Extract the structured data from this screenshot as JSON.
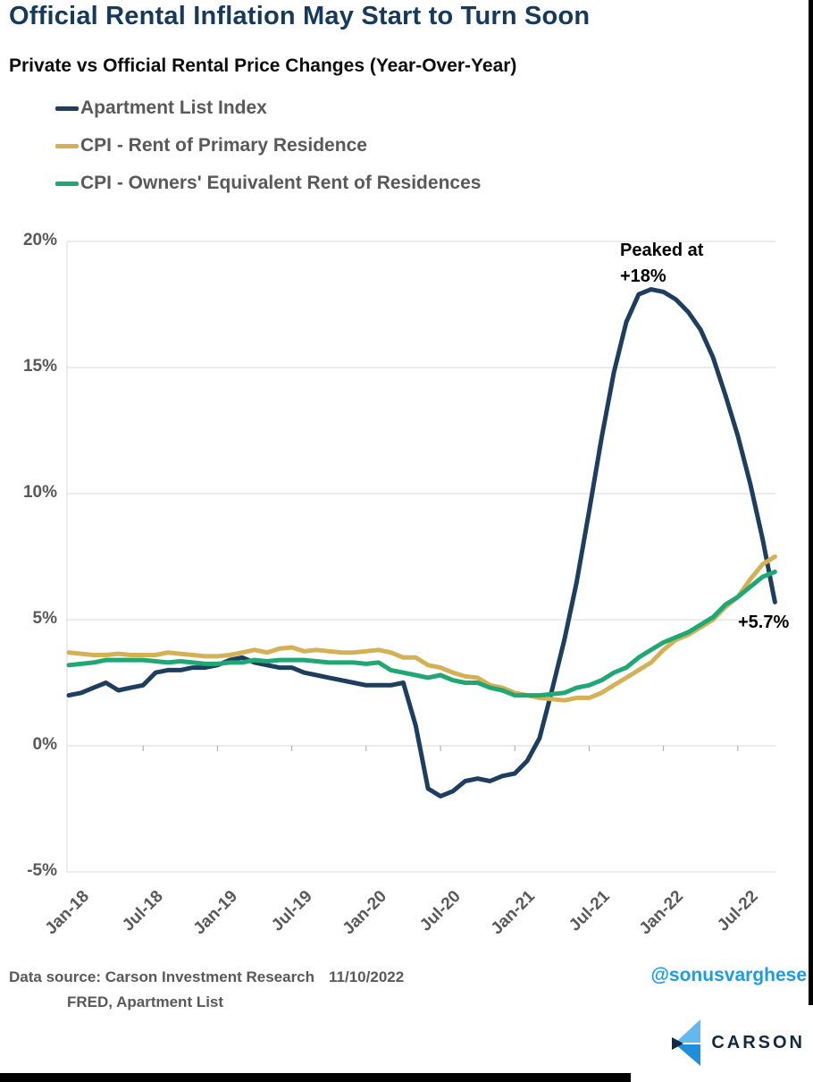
{
  "header": {
    "title": "Official Rental Inflation May Start to Turn Soon",
    "subtitle": "Private vs Official Rental Price Changes (Year-Over-Year)"
  },
  "footer": {
    "source_line1": "Data source: Carson Investment Research",
    "date": "11/10/2022",
    "source_line2": "FRED, Apartment List",
    "twitter_handle": "@sonusvarghese",
    "logo_text": "CARSON"
  },
  "colors": {
    "title_navy": "#16395c",
    "gridline": "#d9d9d9",
    "axis_text": "#595959",
    "handle_blue": "#1b9ce5",
    "logo_light_blue": "#63b8ee",
    "logo_blue": "#1f8fdc",
    "logo_navy": "#14293f"
  },
  "chart_data": {
    "type": "line",
    "title": "Private vs Official Rental Price Changes (Year-Over-Year)",
    "x_unit": "month",
    "x_start": "Jan-18",
    "x_end": "Oct-22",
    "x_tick_labels": [
      "Jan-18",
      "Jul-18",
      "Jan-19",
      "Jul-19",
      "Jan-20",
      "Jul-20",
      "Jan-21",
      "Jul-21",
      "Jan-22",
      "Jul-22"
    ],
    "x_tick_every_months": 6,
    "y_tick_labels": [
      "20%",
      "15%",
      "10%",
      "5%",
      "0%",
      "-5%"
    ],
    "y_tick_values": [
      20,
      15,
      10,
      5,
      0,
      -5
    ],
    "ylim": [
      -5,
      20
    ],
    "grid": "horizontal",
    "legend_position": "top-left",
    "series": [
      {
        "name": "Apartment List Index",
        "color": "#1d3e5e",
        "values": [
          2.0,
          2.1,
          2.3,
          2.5,
          2.2,
          2.3,
          2.4,
          2.9,
          3.0,
          3.0,
          3.1,
          3.1,
          3.2,
          3.4,
          3.5,
          3.3,
          3.2,
          3.1,
          3.1,
          2.9,
          2.8,
          2.7,
          2.6,
          2.5,
          2.4,
          2.4,
          2.4,
          2.5,
          0.8,
          -1.7,
          -2.0,
          -1.8,
          -1.4,
          -1.3,
          -1.4,
          -1.2,
          -1.1,
          -0.6,
          0.3,
          2.2,
          4.2,
          6.5,
          9.3,
          12.2,
          14.8,
          16.8,
          17.9,
          18.1,
          18.0,
          17.7,
          17.2,
          16.5,
          15.4,
          13.9,
          12.3,
          10.4,
          8.2,
          5.7
        ]
      },
      {
        "name": "CPI - Rent of Primary Residence",
        "color": "#d5b155",
        "values": [
          3.7,
          3.65,
          3.6,
          3.6,
          3.65,
          3.6,
          3.6,
          3.6,
          3.7,
          3.65,
          3.6,
          3.55,
          3.55,
          3.6,
          3.7,
          3.8,
          3.7,
          3.85,
          3.9,
          3.75,
          3.8,
          3.75,
          3.7,
          3.7,
          3.75,
          3.8,
          3.7,
          3.5,
          3.5,
          3.2,
          3.1,
          2.9,
          2.75,
          2.7,
          2.4,
          2.3,
          2.1,
          2.0,
          1.9,
          1.85,
          1.8,
          1.9,
          1.9,
          2.1,
          2.4,
          2.7,
          3.0,
          3.3,
          3.8,
          4.2,
          4.4,
          4.7,
          5.0,
          5.5,
          5.9,
          6.6,
          7.2,
          7.5
        ]
      },
      {
        "name": "CPI - Owners' Equivalent Rent of Residences",
        "color": "#1fa873",
        "values": [
          3.2,
          3.25,
          3.3,
          3.4,
          3.4,
          3.4,
          3.4,
          3.35,
          3.3,
          3.35,
          3.3,
          3.25,
          3.25,
          3.3,
          3.3,
          3.4,
          3.35,
          3.4,
          3.4,
          3.4,
          3.35,
          3.3,
          3.3,
          3.3,
          3.25,
          3.3,
          3.0,
          2.9,
          2.8,
          2.7,
          2.8,
          2.6,
          2.5,
          2.5,
          2.3,
          2.2,
          2.0,
          2.0,
          2.0,
          2.05,
          2.1,
          2.3,
          2.4,
          2.6,
          2.9,
          3.1,
          3.5,
          3.8,
          4.1,
          4.3,
          4.5,
          4.8,
          5.1,
          5.6,
          5.9,
          6.3,
          6.7,
          6.9
        ]
      }
    ],
    "annotations": [
      {
        "text": "Peaked at\n+18%",
        "x": "Dec-21",
        "y": 18
      },
      {
        "text": "+5.7%",
        "x": "Oct-22",
        "y": 5.7
      }
    ]
  }
}
